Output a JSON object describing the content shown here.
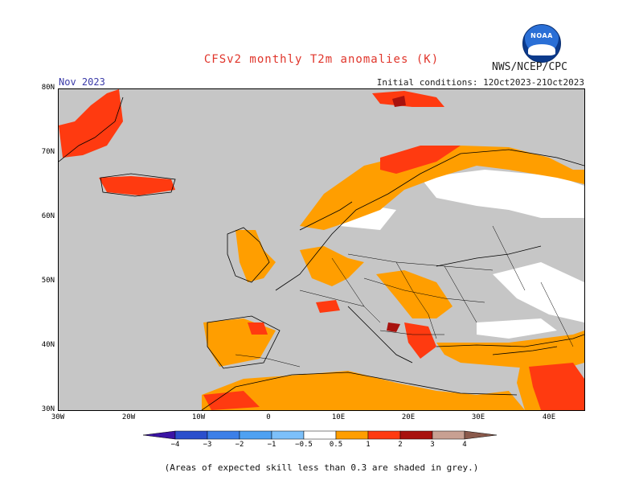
{
  "title": "CFSv2 monthly T2m anomalies (K)",
  "month": "Nov 2023",
  "initial_conditions": "Initial conditions: 12Oct2023-21Oct2023",
  "agency": "NWS/NCEP/CPC",
  "logo_text": "NOAA",
  "footnote": "(Areas of expected skill less than 0.3 are shaded in grey.)",
  "map": {
    "lat_ticks": [
      "80N",
      "70N",
      "60N",
      "50N",
      "40N",
      "30N"
    ],
    "lon_ticks": [
      "30W",
      "20W",
      "10W",
      "0",
      "10E",
      "20E",
      "30E",
      "40E"
    ],
    "colors": {
      "ocean_no_skill": "#c6c6c6",
      "near_normal": "#ffffff",
      "anom_0_5_1": "#ff9e00",
      "anom_1_2": "#ff3a10",
      "anom_2_3": "#a8120e",
      "anom_3_4": "#c8a092",
      "anom_gt4": "#8a5a4c"
    }
  },
  "colorbar": {
    "labels": [
      "−4",
      "−3",
      "−2",
      "−1",
      "−0.5",
      "0.5",
      "1",
      "2",
      "3",
      "4"
    ],
    "colors": [
      "#3b14a4",
      "#2b4fcc",
      "#3c7fe8",
      "#4ea1f2",
      "#7cc0fa",
      "#ffffff",
      "#ff9e00",
      "#ff3a10",
      "#a8120e",
      "#c8a092",
      "#8a5a4c"
    ]
  }
}
